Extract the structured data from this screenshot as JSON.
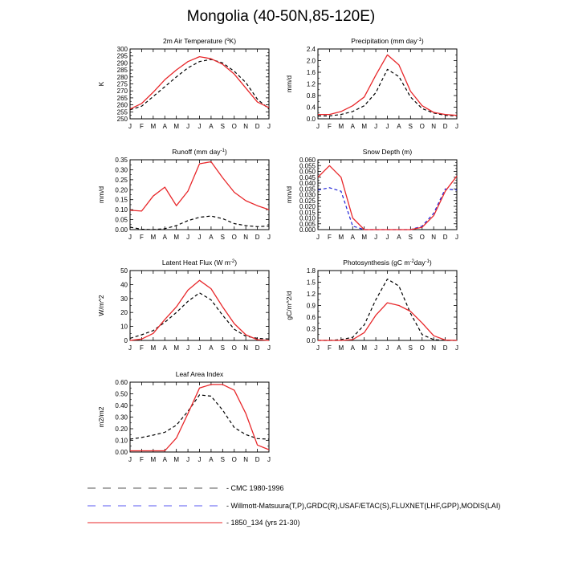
{
  "page": {
    "title": "Mongolia (40-50N,85-120E)"
  },
  "legend": [
    {
      "label": "CMC 1980-1996",
      "color": "#555555",
      "dash": "long"
    },
    {
      "label": "Willmott-Matsuura(T,P),GRDC(R),USAF/ETAC(S),FLUXNET(LHF,GPP),MODIS(LAI)",
      "color": "#5a5af0",
      "dash": "long"
    },
    {
      "label": "1850_134 (yrs 21-30)",
      "color": "#e8272a",
      "dash": "solid"
    }
  ],
  "chart_data": [
    {
      "type": "line",
      "title": "2m Air Temperature (",
      "title_sup": "o",
      "title_after": "K)",
      "ylabel": "K",
      "categories": [
        "J",
        "F",
        "M",
        "A",
        "M",
        "J",
        "J",
        "A",
        "S",
        "O",
        "N",
        "D",
        "J"
      ],
      "ylim": [
        250,
        300
      ],
      "yticks": [
        250,
        255,
        260,
        265,
        270,
        275,
        280,
        285,
        290,
        295,
        300
      ],
      "yticklabels": [
        "250",
        "255",
        "260",
        "265",
        "270",
        "275",
        "280",
        "285",
        "290",
        "295",
        "300"
      ],
      "series": [
        {
          "style": "obs",
          "color": "#000000",
          "dash": "dashed",
          "values": [
            256.5,
            259,
            266,
            273,
            280,
            286.5,
            291,
            292.5,
            290,
            284,
            276,
            264,
            257
          ]
        },
        {
          "style": "model",
          "color": "#e8272a",
          "dash": "solid",
          "values": [
            257,
            261,
            269,
            278,
            285,
            291,
            294.5,
            293,
            289,
            282,
            272,
            262,
            258
          ]
        }
      ]
    },
    {
      "type": "line",
      "title": "Precipitation (mm day",
      "title_sup": "-1",
      "title_after": ")",
      "ylabel": "mm/d",
      "categories": [
        "J",
        "F",
        "M",
        "A",
        "M",
        "J",
        "J",
        "A",
        "S",
        "O",
        "N",
        "D",
        "J"
      ],
      "ylim": [
        0,
        2.4
      ],
      "yticks": [
        0,
        0.4,
        0.8,
        1.2,
        1.6,
        2.0,
        2.4
      ],
      "yticklabels": [
        "0.0",
        "0.4",
        "0.8",
        "1.2",
        "1.6",
        "2.0",
        "2.4"
      ],
      "series": [
        {
          "style": "obs",
          "color": "#000000",
          "dash": "dashed",
          "values": [
            0.1,
            0.1,
            0.15,
            0.25,
            0.45,
            0.9,
            1.7,
            1.45,
            0.75,
            0.35,
            0.2,
            0.12,
            0.1
          ]
        },
        {
          "style": "model",
          "color": "#e8272a",
          "dash": "solid",
          "values": [
            0.15,
            0.15,
            0.25,
            0.45,
            0.75,
            1.5,
            2.2,
            1.85,
            0.95,
            0.45,
            0.22,
            0.15,
            0.12
          ]
        }
      ]
    },
    {
      "type": "line",
      "title": "Runoff (mm day",
      "title_sup": "-1",
      "title_after": ")",
      "ylabel": "mm/d",
      "categories": [
        "J",
        "F",
        "M",
        "A",
        "M",
        "J",
        "J",
        "A",
        "S",
        "O",
        "N",
        "D",
        "J"
      ],
      "ylim": [
        0,
        0.35
      ],
      "yticks": [
        0,
        0.05,
        0.1,
        0.15,
        0.2,
        0.25,
        0.3,
        0.35
      ],
      "yticklabels": [
        "0.00",
        "0.05",
        "0.10",
        "0.15",
        "0.20",
        "0.25",
        "0.30",
        "0.35"
      ],
      "series": [
        {
          "style": "obs",
          "color": "#000000",
          "dash": "dashed",
          "values": [
            0.012,
            0.002,
            0.0,
            0.005,
            0.02,
            0.045,
            0.062,
            0.068,
            0.055,
            0.03,
            0.02,
            0.015,
            0.018
          ]
        },
        {
          "style": "model",
          "color": "#e8272a",
          "dash": "solid",
          "values": [
            0.097,
            0.093,
            0.168,
            0.213,
            0.12,
            0.193,
            0.33,
            0.34,
            0.26,
            0.187,
            0.145,
            0.12,
            0.1
          ]
        }
      ]
    },
    {
      "type": "line",
      "title": "Snow Depth (m)",
      "title_sup": "",
      "title_after": "",
      "ylabel": "mm/d",
      "categories": [
        "J",
        "F",
        "M",
        "A",
        "M",
        "J",
        "J",
        "A",
        "S",
        "O",
        "N",
        "D",
        "J"
      ],
      "ylim": [
        0,
        0.06
      ],
      "yticks": [
        0,
        0.005,
        0.01,
        0.015,
        0.02,
        0.025,
        0.03,
        0.035,
        0.04,
        0.045,
        0.05,
        0.055,
        0.06
      ],
      "yticklabels": [
        "0.000",
        "0.005",
        "0.010",
        "0.015",
        "0.020",
        "0.025",
        "0.030",
        "0.035",
        "0.040",
        "0.045",
        "0.050",
        "0.055",
        "0.060"
      ],
      "series": [
        {
          "style": "obs",
          "color": "#1f22d6",
          "dash": "dashed",
          "values": [
            0.034,
            0.036,
            0.033,
            0.003,
            0.0,
            0.0,
            0.0,
            0.0,
            0.0,
            0.003,
            0.014,
            0.035,
            0.034
          ]
        },
        {
          "style": "model",
          "color": "#e8272a",
          "dash": "solid",
          "values": [
            0.045,
            0.055,
            0.045,
            0.01,
            0.0,
            0.0,
            0.0,
            0.0,
            0.0,
            0.002,
            0.012,
            0.033,
            0.046
          ]
        }
      ]
    },
    {
      "type": "line",
      "title": "Latent Heat Flux (W m",
      "title_sup": "-2",
      "title_after": ")",
      "ylabel": "W/m^2",
      "categories": [
        "J",
        "F",
        "M",
        "A",
        "M",
        "J",
        "J",
        "A",
        "S",
        "O",
        "N",
        "D",
        "J"
      ],
      "ylim": [
        0,
        50
      ],
      "yticks": [
        0,
        10,
        20,
        30,
        40,
        50
      ],
      "yticklabels": [
        "0",
        "10",
        "20",
        "30",
        "40",
        "50"
      ],
      "series": [
        {
          "style": "obs",
          "color": "#000000",
          "dash": "dashed",
          "values": [
            1.5,
            4,
            7,
            13,
            20,
            28,
            34,
            29,
            18,
            8,
            3,
            1.5,
            1
          ]
        },
        {
          "style": "model",
          "color": "#e8272a",
          "dash": "solid",
          "values": [
            0,
            1,
            5,
            15,
            24,
            36,
            43,
            37,
            24,
            12,
            4,
            0.5,
            0
          ]
        }
      ]
    },
    {
      "type": "line",
      "title": "Photosynthesis (gC m",
      "title_sup": "-2",
      "title_after": "day",
      "title_sup2": "-1",
      "title_after2": ")",
      "ylabel": "gC/m^2/d",
      "categories": [
        "J",
        "F",
        "M",
        "A",
        "M",
        "J",
        "J",
        "A",
        "S",
        "O",
        "N",
        "D",
        "J"
      ],
      "ylim": [
        0,
        1.8
      ],
      "yticks": [
        0,
        0.3,
        0.6,
        0.9,
        1.2,
        1.5,
        1.8
      ],
      "yticklabels": [
        "0.0",
        "0.3",
        "0.6",
        "0.9",
        "1.2",
        "1.5",
        "1.8"
      ],
      "series": [
        {
          "style": "obs",
          "color": "#000000",
          "dash": "dashed",
          "values": [
            0,
            0,
            0.02,
            0.08,
            0.4,
            1.05,
            1.58,
            1.4,
            0.7,
            0.15,
            0.02,
            0,
            0
          ]
        },
        {
          "style": "model",
          "color": "#e8272a",
          "dash": "solid",
          "values": [
            0,
            0,
            0,
            0.02,
            0.2,
            0.65,
            0.97,
            0.9,
            0.75,
            0.45,
            0.12,
            0.01,
            0
          ]
        }
      ]
    },
    {
      "type": "line",
      "title": "Leaf Area Index",
      "title_sup": "",
      "title_after": "",
      "ylabel": "m2/m2",
      "categories": [
        "J",
        "F",
        "M",
        "A",
        "M",
        "J",
        "J",
        "A",
        "S",
        "O",
        "N",
        "D",
        "J"
      ],
      "ylim": [
        0,
        0.6
      ],
      "yticks": [
        0,
        0.1,
        0.2,
        0.3,
        0.4,
        0.5,
        0.6
      ],
      "yticklabels": [
        "0.00",
        "0.10",
        "0.20",
        "0.30",
        "0.40",
        "0.50",
        "0.60"
      ],
      "series": [
        {
          "style": "obs",
          "color": "#000000",
          "dash": "dashed",
          "values": [
            0.11,
            0.125,
            0.145,
            0.17,
            0.23,
            0.35,
            0.49,
            0.48,
            0.36,
            0.21,
            0.15,
            0.115,
            0.11
          ]
        },
        {
          "style": "model",
          "color": "#e8272a",
          "dash": "solid",
          "values": [
            0.01,
            0.01,
            0.01,
            0.01,
            0.12,
            0.33,
            0.55,
            0.58,
            0.58,
            0.53,
            0.33,
            0.06,
            0.02
          ]
        }
      ]
    }
  ]
}
